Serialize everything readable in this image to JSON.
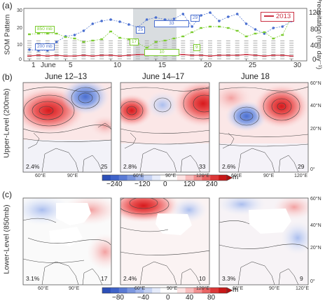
{
  "panel_a": {
    "label": "(a)",
    "left_axis_title": "SOM Pattern",
    "right_axis_title": "Precipitation (mm day⁻¹)",
    "month_label": "June",
    "legend_label": "2013",
    "x_ticks": [
      "1",
      "5",
      "10",
      "15",
      "20",
      "25",
      "30"
    ],
    "left_ticks": [
      "30",
      "20",
      "10",
      "0"
    ],
    "right_ticks": [
      "120",
      "80",
      "40",
      "0"
    ],
    "blue_tags": [
      "200 mb",
      "25",
      "33",
      "29"
    ],
    "green_tags": [
      "850 mb",
      "17",
      "10",
      "9"
    ],
    "colors": {
      "blue": "#4a6fd0",
      "green": "#7ccc30",
      "red": "#cc3344",
      "gray": "#b0b0b0",
      "shade": "#d9dde0"
    }
  },
  "panel_b": {
    "label": "(b)",
    "side_title": "Upper-Level (200mb)",
    "maps": [
      {
        "title": "June 12–13",
        "pct": "2.4%",
        "pattern": "25"
      },
      {
        "title": "June 14–17",
        "pct": "2.8%",
        "pattern": "33"
      },
      {
        "title": "June 18",
        "pct": "2.6%",
        "pattern": "29"
      }
    ],
    "lon_ticks": [
      "60°E",
      "90°E",
      "120°E"
    ],
    "lat_ticks": [
      "60°N",
      "40°N",
      "20°N",
      "0°"
    ],
    "colorbar": {
      "ticks": [
        "−240",
        "−120",
        "0",
        "120",
        "240"
      ],
      "unit": "m"
    }
  },
  "panel_c": {
    "label": "(c)",
    "side_title": "Lower-Level (850mb)",
    "maps": [
      {
        "pct": "3.1%",
        "pattern": "17"
      },
      {
        "pct": "2.4%",
        "pattern": "10"
      },
      {
        "pct": "3.3%",
        "pattern": "9"
      }
    ],
    "lon_ticks": [
      "60°E",
      "90°E",
      "120°E"
    ],
    "lat_ticks": [
      "60°N",
      "40°N",
      "20°N",
      "0°"
    ],
    "colorbar": {
      "ticks": [
        "−80",
        "−40",
        "0",
        "40",
        "80"
      ],
      "unit": "m"
    }
  }
}
